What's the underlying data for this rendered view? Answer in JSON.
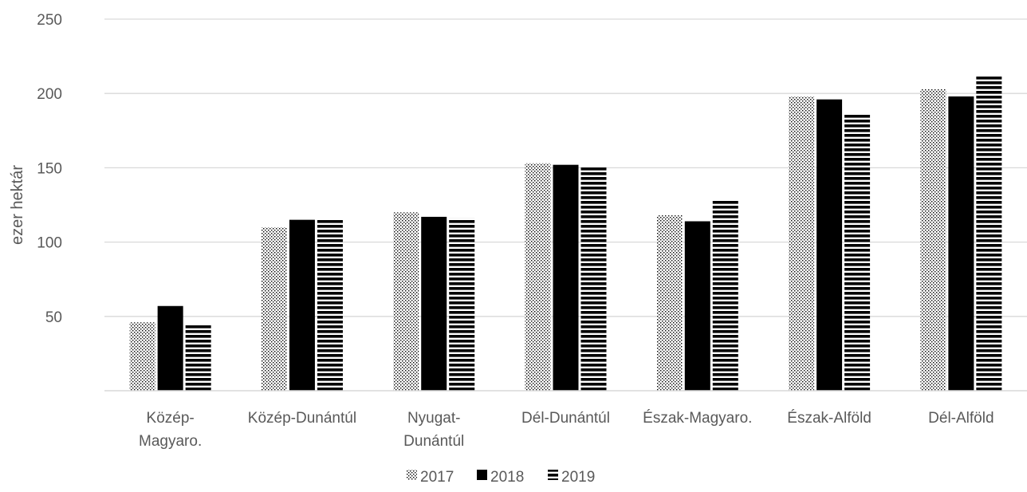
{
  "chart_data": {
    "type": "bar",
    "title": "",
    "xlabel": "",
    "ylabel": "ezer hektár",
    "ylim": [
      0,
      250
    ],
    "yticks": [
      50,
      100,
      150,
      200,
      250
    ],
    "grid": true,
    "legend_position": "bottom",
    "categories": [
      [
        "Közép-",
        "Magyaro."
      ],
      [
        "Közép-Dunántúl"
      ],
      [
        "Nyugat-",
        "Dunántúl"
      ],
      [
        "Dél-Dunántúl"
      ],
      [
        "Észak-Magyaro."
      ],
      [
        "Észak-Alföld"
      ],
      [
        "Dél-Alföld"
      ]
    ],
    "series": [
      {
        "name": "2017",
        "pattern": "dotted",
        "values": [
          46,
          110,
          120,
          153,
          118,
          198,
          203
        ]
      },
      {
        "name": "2018",
        "pattern": "solid",
        "values": [
          57,
          115,
          117,
          152,
          114,
          196,
          198
        ]
      },
      {
        "name": "2019",
        "pattern": "horizontal-stripes",
        "values": [
          45,
          115,
          116,
          151,
          128,
          186,
          212
        ]
      }
    ],
    "colors": {
      "bar": "#000000",
      "grid": "#d9d9d9",
      "text": "#595959"
    }
  }
}
